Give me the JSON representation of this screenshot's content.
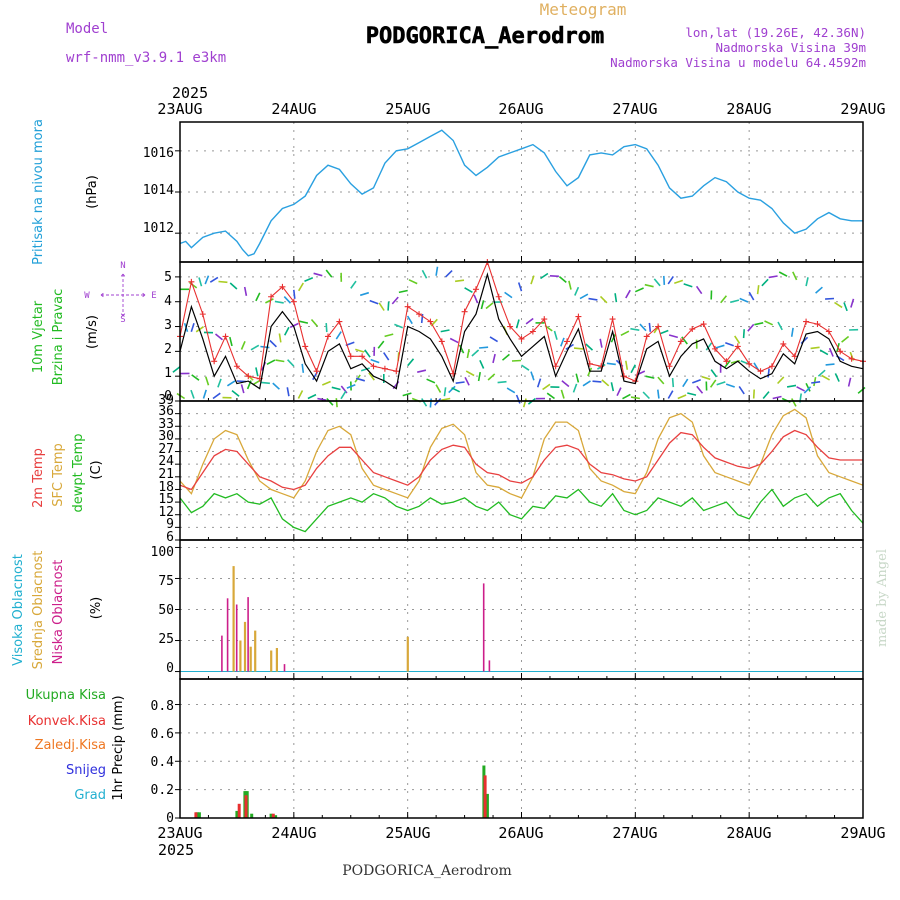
{
  "header": {
    "title": "PODGORICA_Aerodrom",
    "subtitle": "Meteogram",
    "model_label": "Model",
    "model_name": "wrf-nmm_v3.9.1  e3km",
    "coords": "lon,lat (19.26E, 42.36N)",
    "elevation": "Nadmorska Visina 39m",
    "model_elevation": "Nadmorska Visina u modelu 64.4592m",
    "year_top": "2025",
    "year_bottom": "2025",
    "footer_station": "PODGORICA_Aerodrom",
    "credit": "made by Angel"
  },
  "colors": {
    "pressure": "#2aa0e0",
    "wind_label": "#22bb22",
    "speed_line": "#000000",
    "gust_line": "#e83030",
    "t2m": "#e84040",
    "sfc": "#d8a83a",
    "dewpoint": "#22bb22",
    "cloud_high": "#22b0d0",
    "cloud_mid": "#d8a83a",
    "cloud_low": "#cc1e8a",
    "precip_total": "#22aa22",
    "precip_conv": "#e83030",
    "precip_frozen": "#ee7722",
    "snow": "#3030dd",
    "graupel": "#22b0d0",
    "grid": "#999999",
    "header_purple": "#a040d0",
    "header_orange": "#e0b060"
  },
  "chart_data": [
    {
      "type": "line",
      "panel": "pressure",
      "title": "Pritisak na nivou mora",
      "ylabel": "(hPa)",
      "ylim": [
        1010.6,
        1017.4
      ],
      "yticks": [
        "1012",
        "1014",
        "1016"
      ],
      "x_days": [
        0,
        0.05,
        0.1,
        0.2,
        0.3,
        0.4,
        0.5,
        0.55,
        0.6,
        0.65,
        0.7,
        0.8,
        0.9,
        1.0,
        1.1,
        1.2,
        1.3,
        1.4,
        1.5,
        1.6,
        1.7,
        1.8,
        1.9,
        2.0,
        2.1,
        2.2,
        2.3,
        2.4,
        2.5,
        2.6,
        2.7,
        2.8,
        2.9,
        3.0,
        3.1,
        3.2,
        3.3,
        3.4,
        3.5,
        3.6,
        3.7,
        3.8,
        3.9,
        4.0,
        4.1,
        4.2,
        4.3,
        4.4,
        4.5,
        4.6,
        4.7,
        4.8,
        4.9,
        5.0,
        5.1,
        5.2,
        5.3,
        5.4,
        5.5,
        5.6,
        5.7,
        5.8,
        5.9,
        6.0
      ],
      "values": [
        1011.5,
        1011.6,
        1011.3,
        1011.8,
        1012.0,
        1012.1,
        1011.6,
        1011.2,
        1010.9,
        1011.0,
        1011.5,
        1012.6,
        1013.2,
        1013.4,
        1013.8,
        1014.8,
        1015.3,
        1015.1,
        1014.4,
        1013.9,
        1014.2,
        1015.4,
        1016.0,
        1016.1,
        1016.4,
        1016.7,
        1017.0,
        1016.5,
        1015.3,
        1014.8,
        1015.2,
        1015.7,
        1015.9,
        1016.1,
        1016.3,
        1015.9,
        1015.0,
        1014.3,
        1014.7,
        1015.8,
        1015.9,
        1015.8,
        1016.2,
        1016.3,
        1016.1,
        1015.3,
        1014.2,
        1013.7,
        1013.8,
        1014.3,
        1014.7,
        1014.5,
        1014.0,
        1013.7,
        1013.6,
        1013.2,
        1012.5,
        1012.0,
        1012.2,
        1012.7,
        1013.0,
        1012.7,
        1012.6,
        1012.6
      ]
    },
    {
      "type": "line",
      "panel": "wind",
      "title": "10m Vjetar",
      "title2": "Brzina i Pravac",
      "ylabel": "(m/s)",
      "ylim": [
        0,
        5.6
      ],
      "yticks": [
        "0",
        "1",
        "2",
        "3",
        "4",
        "5"
      ],
      "compass": {
        "n": "N",
        "s": "S",
        "e": "E",
        "w": "W"
      },
      "x_days": [
        0,
        0.1,
        0.2,
        0.3,
        0.4,
        0.5,
        0.6,
        0.7,
        0.8,
        0.9,
        1.0,
        1.1,
        1.2,
        1.3,
        1.4,
        1.5,
        1.6,
        1.7,
        1.8,
        1.9,
        2.0,
        2.1,
        2.2,
        2.3,
        2.4,
        2.5,
        2.6,
        2.7,
        2.8,
        2.9,
        3.0,
        3.1,
        3.2,
        3.3,
        3.4,
        3.5,
        3.6,
        3.7,
        3.8,
        3.9,
        4.0,
        4.1,
        4.2,
        4.3,
        4.4,
        4.5,
        4.6,
        4.7,
        4.8,
        4.9,
        5.0,
        5.1,
        5.2,
        5.3,
        5.4,
        5.5,
        5.6,
        5.7,
        5.8,
        5.9,
        6.0
      ],
      "series": [
        {
          "name": "speed",
          "values": [
            2.0,
            3.8,
            2.5,
            1.0,
            1.8,
            0.7,
            0.8,
            0.5,
            3.0,
            3.6,
            3.0,
            1.5,
            0.8,
            2.0,
            2.3,
            1.3,
            1.5,
            1.0,
            0.8,
            0.5,
            3.0,
            2.8,
            2.5,
            1.8,
            0.8,
            2.8,
            3.5,
            5.1,
            3.3,
            2.5,
            1.8,
            2.2,
            2.6,
            1.0,
            2.0,
            2.9,
            1.2,
            1.2,
            2.8,
            0.8,
            0.7,
            2.1,
            2.4,
            1.0,
            1.8,
            2.3,
            2.5,
            1.6,
            1.3,
            1.6,
            1.2,
            0.9,
            1.1,
            1.9,
            1.5,
            2.7,
            2.8,
            2.5,
            1.6,
            1.4,
            1.3
          ]
        },
        {
          "name": "gust",
          "values": [
            2.6,
            4.8,
            3.5,
            1.6,
            2.6,
            1.4,
            1.0,
            0.9,
            4.2,
            4.6,
            4.0,
            2.2,
            1.2,
            2.6,
            3.2,
            1.8,
            1.8,
            1.4,
            1.3,
            1.2,
            3.8,
            3.5,
            3.2,
            2.4,
            1.1,
            3.6,
            4.5,
            5.6,
            4.2,
            3.0,
            2.5,
            2.8,
            3.3,
            1.4,
            2.4,
            3.4,
            1.5,
            1.4,
            3.3,
            1.0,
            0.8,
            2.6,
            3.0,
            1.4,
            2.4,
            2.9,
            3.1,
            2.1,
            1.6,
            2.2,
            1.5,
            1.2,
            1.4,
            2.3,
            1.8,
            3.2,
            3.1,
            2.8,
            2.0,
            1.7,
            1.6
          ]
        }
      ]
    },
    {
      "type": "line",
      "panel": "temperature",
      "title": "2m Temp",
      "title2": "SFC Temp",
      "title3": "dewpt Temp",
      "ylabel": "(C)",
      "ylim": [
        6,
        39
      ],
      "yticks": [
        "6",
        "9",
        "12",
        "15",
        "18",
        "21",
        "24",
        "27",
        "30",
        "33",
        "36",
        "39"
      ],
      "x_days": [
        0,
        0.1,
        0.2,
        0.3,
        0.4,
        0.5,
        0.6,
        0.7,
        0.8,
        0.9,
        1.0,
        1.1,
        1.2,
        1.3,
        1.4,
        1.5,
        1.6,
        1.7,
        1.8,
        1.9,
        2.0,
        2.1,
        2.2,
        2.3,
        2.4,
        2.5,
        2.6,
        2.7,
        2.8,
        2.9,
        3.0,
        3.1,
        3.2,
        3.3,
        3.4,
        3.5,
        3.6,
        3.7,
        3.8,
        3.9,
        4.0,
        4.1,
        4.2,
        4.3,
        4.4,
        4.5,
        4.6,
        4.7,
        4.8,
        4.9,
        5.0,
        5.1,
        5.2,
        5.3,
        5.4,
        5.5,
        5.6,
        5.7,
        5.8,
        5.9,
        6.0
      ],
      "series": [
        {
          "name": "t2m",
          "values": [
            19,
            18,
            22,
            26,
            27.5,
            27,
            24,
            21,
            20,
            18.5,
            18,
            19,
            23,
            26,
            28,
            28,
            25,
            22,
            21,
            20,
            19,
            21,
            25,
            27.5,
            28.5,
            28,
            24,
            22,
            21.5,
            20,
            19.5,
            21,
            25,
            28,
            28.5,
            27.5,
            24,
            22,
            21.5,
            20.5,
            20,
            21,
            25,
            29,
            31.5,
            31,
            28,
            25.5,
            24.5,
            23.5,
            23,
            24,
            27,
            30.5,
            32,
            31,
            28,
            25.5,
            25,
            25,
            25
          ]
        },
        {
          "name": "sfc",
          "values": [
            20,
            17,
            24,
            30,
            32,
            31,
            25,
            20,
            18,
            17,
            16,
            20,
            27,
            32,
            33,
            31,
            23,
            19,
            18,
            17,
            16,
            20,
            28,
            32.5,
            33.5,
            31,
            22,
            19,
            18.5,
            17,
            16,
            21,
            30,
            34,
            34,
            32,
            23,
            20,
            19,
            17.5,
            17,
            22,
            30,
            35,
            36,
            34,
            26,
            22,
            21,
            20,
            19,
            24,
            31,
            35.5,
            37,
            35,
            26,
            22,
            21,
            20,
            19
          ]
        },
        {
          "name": "dewpt",
          "values": [
            16,
            12.5,
            14,
            17,
            16,
            17,
            15,
            14.5,
            16,
            11,
            9,
            8,
            11,
            14,
            15,
            16,
            15,
            17,
            16,
            14,
            13,
            14,
            16,
            14.5,
            15,
            16,
            14,
            13,
            15,
            12,
            11,
            14,
            13.5,
            16.5,
            16,
            18,
            15,
            14,
            17,
            13,
            12,
            13,
            16,
            15,
            14,
            16,
            13,
            14,
            15,
            12,
            11,
            15,
            18,
            14,
            16,
            17,
            14,
            16,
            17,
            13,
            10
          ]
        }
      ]
    },
    {
      "type": "bar",
      "panel": "clouds",
      "title": "Visoka Oblacnost",
      "title2": "Srednja Oblacnost",
      "title3": "Niska Oblacnost",
      "ylabel": "(%)",
      "ylim": [
        -6,
        106
      ],
      "yticks": [
        "0",
        "25",
        "50",
        "75",
        "100"
      ],
      "series": [
        {
          "name": "mid",
          "x_days": [
            0.47,
            0.53,
            0.57,
            0.62,
            0.66,
            0.8,
            0.85,
            2.0
          ],
          "values": [
            85,
            25,
            40,
            20,
            33,
            17,
            19,
            28
          ]
        },
        {
          "name": "low",
          "x_days": [
            0.37,
            0.42,
            0.5,
            0.6,
            0.92,
            2.67,
            2.72
          ],
          "values": [
            29,
            59,
            54,
            60,
            6,
            71,
            9
          ]
        }
      ]
    },
    {
      "type": "bar",
      "panel": "precip",
      "title": "Ukupna Kisa",
      "title2": "Konvek.Kisa",
      "title3": "Zaledj.Kisa",
      "title4": "Snijeg",
      "title5": "Grad",
      "ylabel": "1hr Precip (mm)",
      "ylim": [
        0,
        0.98
      ],
      "yticks": [
        "0",
        "0.2",
        "0.4",
        "0.6",
        "0.8"
      ],
      "series": [
        {
          "name": "total",
          "x_days": [
            0.15,
            0.17,
            0.5,
            0.57,
            0.59,
            0.63,
            0.8,
            0.84,
            2.67,
            2.7
          ],
          "values": [
            0.04,
            0.04,
            0.05,
            0.19,
            0.19,
            0.03,
            0.03,
            0.02,
            0.37,
            0.17
          ]
        },
        {
          "name": "conv",
          "x_days": [
            0.14,
            0.52,
            0.58,
            0.82,
            2.68
          ],
          "values": [
            0.04,
            0.1,
            0.16,
            0.03,
            0.3
          ]
        }
      ]
    }
  ],
  "x_axis": {
    "days": [
      "23AUG",
      "24AUG",
      "25AUG",
      "26AUG",
      "27AUG",
      "28AUG",
      "29AUG"
    ]
  }
}
